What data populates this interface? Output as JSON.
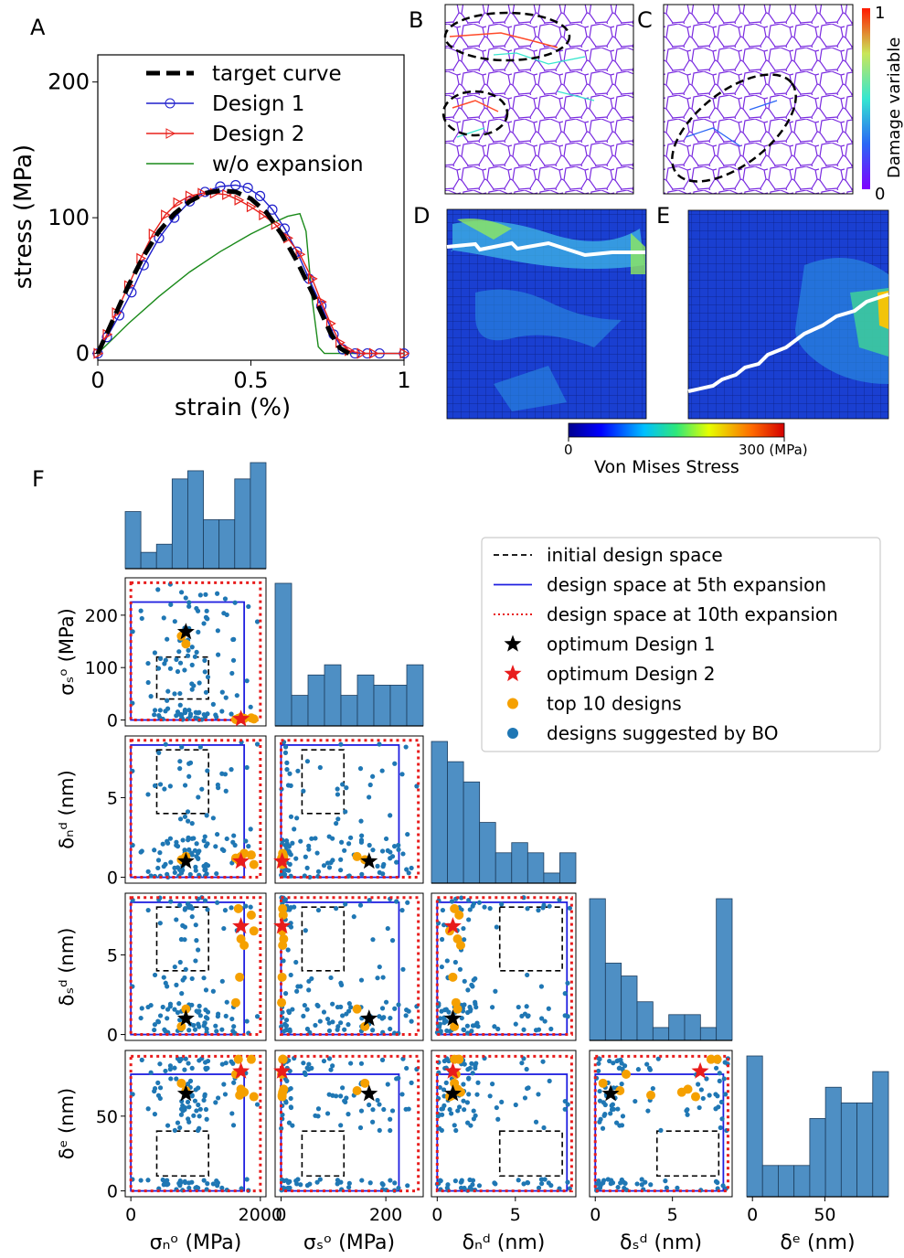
{
  "panels": {
    "A": {
      "label": "A",
      "chart_data": {
        "type": "line",
        "xlabel": "strain (%)",
        "ylabel": "stress (MPa)",
        "xlim": [
          0,
          1
        ],
        "ylim": [
          -5,
          220
        ],
        "xticks": [
          "0",
          "0.5",
          "1"
        ],
        "yticks": [
          "0",
          "100",
          "200"
        ],
        "legend": "top-right",
        "series": [
          {
            "name": "target curve",
            "color": "#000000",
            "x": [
              0,
              0.05,
              0.1,
              0.15,
              0.2,
              0.25,
              0.3,
              0.35,
              0.4,
              0.45,
              0.5,
              0.55,
              0.6,
              0.65,
              0.7,
              0.73,
              0.76,
              0.79,
              0.82
            ],
            "y": [
              0,
              25,
              50,
              72,
              90,
              103,
              112,
              118,
              120,
              119,
              114,
              104,
              88,
              68,
              45,
              30,
              15,
              4,
              0
            ]
          },
          {
            "name": "Design 1",
            "color": "#1f1fcc",
            "x": [
              0,
              0.03,
              0.07,
              0.11,
              0.15,
              0.2,
              0.25,
              0.3,
              0.35,
              0.4,
              0.45,
              0.49,
              0.53,
              0.57,
              0.61,
              0.65,
              0.69,
              0.73,
              0.77,
              0.8,
              0.84,
              0.88,
              0.92,
              1.0
            ],
            "y": [
              0,
              12,
              28,
              45,
              65,
              85,
              100,
              112,
              119,
              123,
              124,
              122,
              116,
              106,
              92,
              75,
              55,
              35,
              14,
              3,
              0,
              0,
              0,
              0
            ]
          },
          {
            "name": "Design 2",
            "color": "#e8211c",
            "x": [
              0,
              0.03,
              0.06,
              0.1,
              0.14,
              0.18,
              0.22,
              0.26,
              0.3,
              0.34,
              0.38,
              0.42,
              0.46,
              0.5,
              0.54,
              0.58,
              0.62,
              0.66,
              0.7,
              0.73,
              0.76,
              0.79,
              0.82,
              0.86,
              0.9,
              1.0
            ],
            "y": [
              0,
              14,
              30,
              50,
              70,
              88,
              102,
              111,
              116,
              118,
              118,
              117,
              113,
              108,
              102,
              95,
              85,
              73,
              55,
              38,
              22,
              8,
              2,
              0,
              0,
              0
            ]
          },
          {
            "name": "w/o expansion",
            "color": "#1a8a1a",
            "x": [
              0,
              0.1,
              0.2,
              0.3,
              0.4,
              0.5,
              0.58,
              0.62,
              0.66,
              0.68,
              0.7,
              0.72,
              0.74,
              0.78,
              1.0
            ],
            "y": [
              0,
              22,
              42,
              60,
              75,
              88,
              97,
              101,
              103,
              90,
              40,
              5,
              0,
              0,
              0
            ]
          }
        ]
      }
    },
    "B": {
      "label": "B"
    },
    "C": {
      "label": "C",
      "colorbar_label": "Damage variable",
      "colorbar_max": "1",
      "colorbar_min": "0"
    },
    "D": {
      "label": "D"
    },
    "E": {
      "label": "E"
    },
    "stress_colorbar": {
      "min": "0",
      "max": "300 (MPa)",
      "title": "Von Mises Stress"
    },
    "F": {
      "label": "F",
      "legend": [
        {
          "text": "initial design space",
          "style": "dashed-black"
        },
        {
          "text": "design space at 5th expansion",
          "style": "solid-blue"
        },
        {
          "text": "design space at 10th expansion",
          "style": "dotted-red"
        },
        {
          "text": "optimum Design 1",
          "style": "star-black"
        },
        {
          "text": "optimum Design 2",
          "style": "star-red"
        },
        {
          "text": "top 10 designs",
          "style": "dot-orange"
        },
        {
          "text": "designs suggested by BO",
          "style": "dot-blue"
        }
      ],
      "variables": [
        {
          "label": "σₙᵒ (MPa)",
          "ticks": [
            "0",
            "2000"
          ]
        },
        {
          "label": "σₛᵒ (MPa)",
          "ticks": [
            "0",
            "200"
          ]
        },
        {
          "label": "δₙᵈ (nm)",
          "ticks": [
            "0",
            "5"
          ]
        },
        {
          "label": "δₛᵈ (nm)",
          "ticks": [
            "0",
            "5"
          ]
        },
        {
          "label": "δᵉ (nm)",
          "ticks": [
            "0",
            "50"
          ]
        }
      ],
      "row_labels": [
        "σₛᵒ (MPa)",
        "δₙᵈ (nm)",
        "δₛᵈ (nm)",
        "δᵉ (nm)"
      ],
      "row_yticks": [
        [
          "0",
          "100",
          "200"
        ],
        [
          "0",
          "5"
        ],
        [
          "0",
          "5"
        ],
        [
          "0",
          "50"
        ]
      ],
      "chart_data": {
        "type": "scatter",
        "variable_ranges": {
          "sigma_n": [
            0,
            2000
          ],
          "sigma_s": [
            0,
            260
          ],
          "delta_n": [
            0,
            8.5
          ],
          "delta_s": [
            0,
            8.5
          ],
          "delta_e": [
            0,
            90
          ]
        },
        "initial_design_space": {
          "sigma_n": [
            400,
            1200
          ],
          "sigma_s": [
            40,
            120
          ],
          "delta_n": [
            4,
            8
          ],
          "delta_s": [
            4,
            8
          ],
          "delta_e": [
            10,
            40
          ]
        },
        "expansion_5": {
          "sigma_n": [
            0,
            1750
          ],
          "sigma_s": [
            0,
            225
          ],
          "delta_n": [
            0,
            8.3
          ],
          "delta_s": [
            0,
            8.3
          ],
          "delta_e": [
            0,
            78
          ]
        },
        "expansion_10": {
          "sigma_n": [
            0,
            2000
          ],
          "sigma_s": [
            0,
            262
          ],
          "delta_n": [
            0,
            8.6
          ],
          "delta_s": [
            0,
            8.6
          ],
          "delta_e": [
            0,
            90
          ]
        },
        "design_1": {
          "sigma_n": 850,
          "sigma_s": 168,
          "delta_n": 1.0,
          "delta_s": 1.0,
          "delta_e": 65
        },
        "design_2": {
          "sigma_n": 1700,
          "sigma_s": 2,
          "delta_n": 1.0,
          "delta_s": 6.8,
          "delta_e": 80
        },
        "top10": [
          {
            "sigma_n": 780,
            "sigma_s": 160,
            "delta_n": 1.1,
            "delta_s": 0.5,
            "delta_e": 72
          },
          {
            "sigma_n": 850,
            "sigma_s": 145,
            "delta_n": 1.3,
            "delta_s": 1.6,
            "delta_e": 67
          },
          {
            "sigma_n": 1660,
            "sigma_s": 3,
            "delta_n": 1.1,
            "delta_s": 7.9,
            "delta_e": 88
          },
          {
            "sigma_n": 1700,
            "sigma_s": 5,
            "delta_n": 1.3,
            "delta_s": 6.0,
            "delta_e": 68
          },
          {
            "sigma_n": 1750,
            "sigma_s": 3,
            "delta_n": 1.5,
            "delta_s": 5.6,
            "delta_e": 66
          },
          {
            "sigma_n": 1680,
            "sigma_s": 2,
            "delta_n": 1.0,
            "delta_s": 3.6,
            "delta_e": 64
          },
          {
            "sigma_n": 1900,
            "sigma_s": 2,
            "delta_n": 0.8,
            "delta_s": 6.5,
            "delta_e": 63
          },
          {
            "sigma_n": 1620,
            "sigma_s": 1,
            "delta_n": 1.2,
            "delta_s": 2.0,
            "delta_e": 78
          },
          {
            "sigma_n": 1860,
            "sigma_s": 4,
            "delta_n": 1.4,
            "delta_s": 7.5,
            "delta_e": 88
          }
        ]
      }
    }
  }
}
